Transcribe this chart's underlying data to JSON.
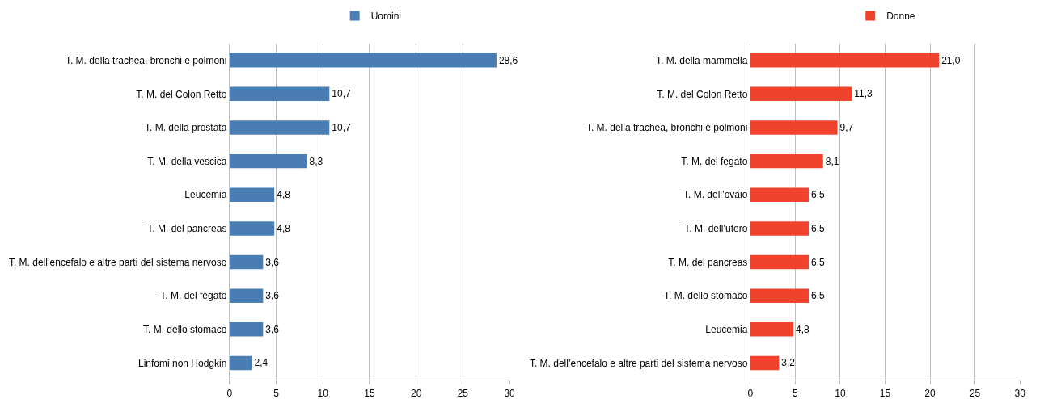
{
  "chart_data": [
    {
      "type": "bar",
      "orientation": "horizontal",
      "categories": [
        "T. M. della trachea, bronchi e polmoni",
        "T. M. del Colon Retto",
        "T. M. della prostata",
        "T. M. della vescica",
        "Leucemia",
        "T. M. del pancreas",
        "T. M. dell’encefalo e altre parti del sistema nervoso",
        "T. M. del fegato",
        "T. M. dello stomaco",
        "Linfomi non Hodgkin"
      ],
      "series": [
        {
          "name": "Uomini",
          "color": "#4a7eb3",
          "values": [
            28.6,
            10.7,
            10.7,
            8.3,
            4.8,
            4.8,
            3.6,
            3.6,
            3.6,
            2.4
          ],
          "value_labels": [
            "28,6",
            "10,7",
            "10,7",
            "8,3",
            "4,8",
            "4,8",
            "3,6",
            "3,6",
            "3,6",
            "2,4"
          ]
        }
      ],
      "xlim": [
        0,
        30
      ],
      "xticks": [
        0,
        5,
        10,
        15,
        20,
        25,
        30
      ],
      "grid": "x",
      "legend": "top"
    },
    {
      "type": "bar",
      "orientation": "horizontal",
      "categories": [
        "T. M. della mammella",
        "T. M. del Colon Retto",
        "T. M. della trachea, bronchi e polmoni",
        "T. M. del fegato",
        "T. M. dell’ovaio",
        "T. M. dell’utero",
        "T. M. del pancreas",
        "T. M. dello stomaco",
        "Leucemia",
        "T. M. dell’encefalo e altre parti del sistema nervoso"
      ],
      "series": [
        {
          "name": "Donne",
          "color": "#f0432e",
          "values": [
            21.0,
            11.3,
            9.7,
            8.1,
            6.5,
            6.5,
            6.5,
            6.5,
            4.8,
            3.2
          ],
          "value_labels": [
            "21,0",
            "11,3",
            "9,7",
            "8,1",
            "6,5",
            "6,5",
            "6,5",
            "6,5",
            "4,8",
            "3,2"
          ]
        }
      ],
      "xlim": [
        0,
        30
      ],
      "xticks": [
        0,
        5,
        10,
        15,
        20,
        25,
        30
      ],
      "grid": "x",
      "legend": "top"
    }
  ]
}
